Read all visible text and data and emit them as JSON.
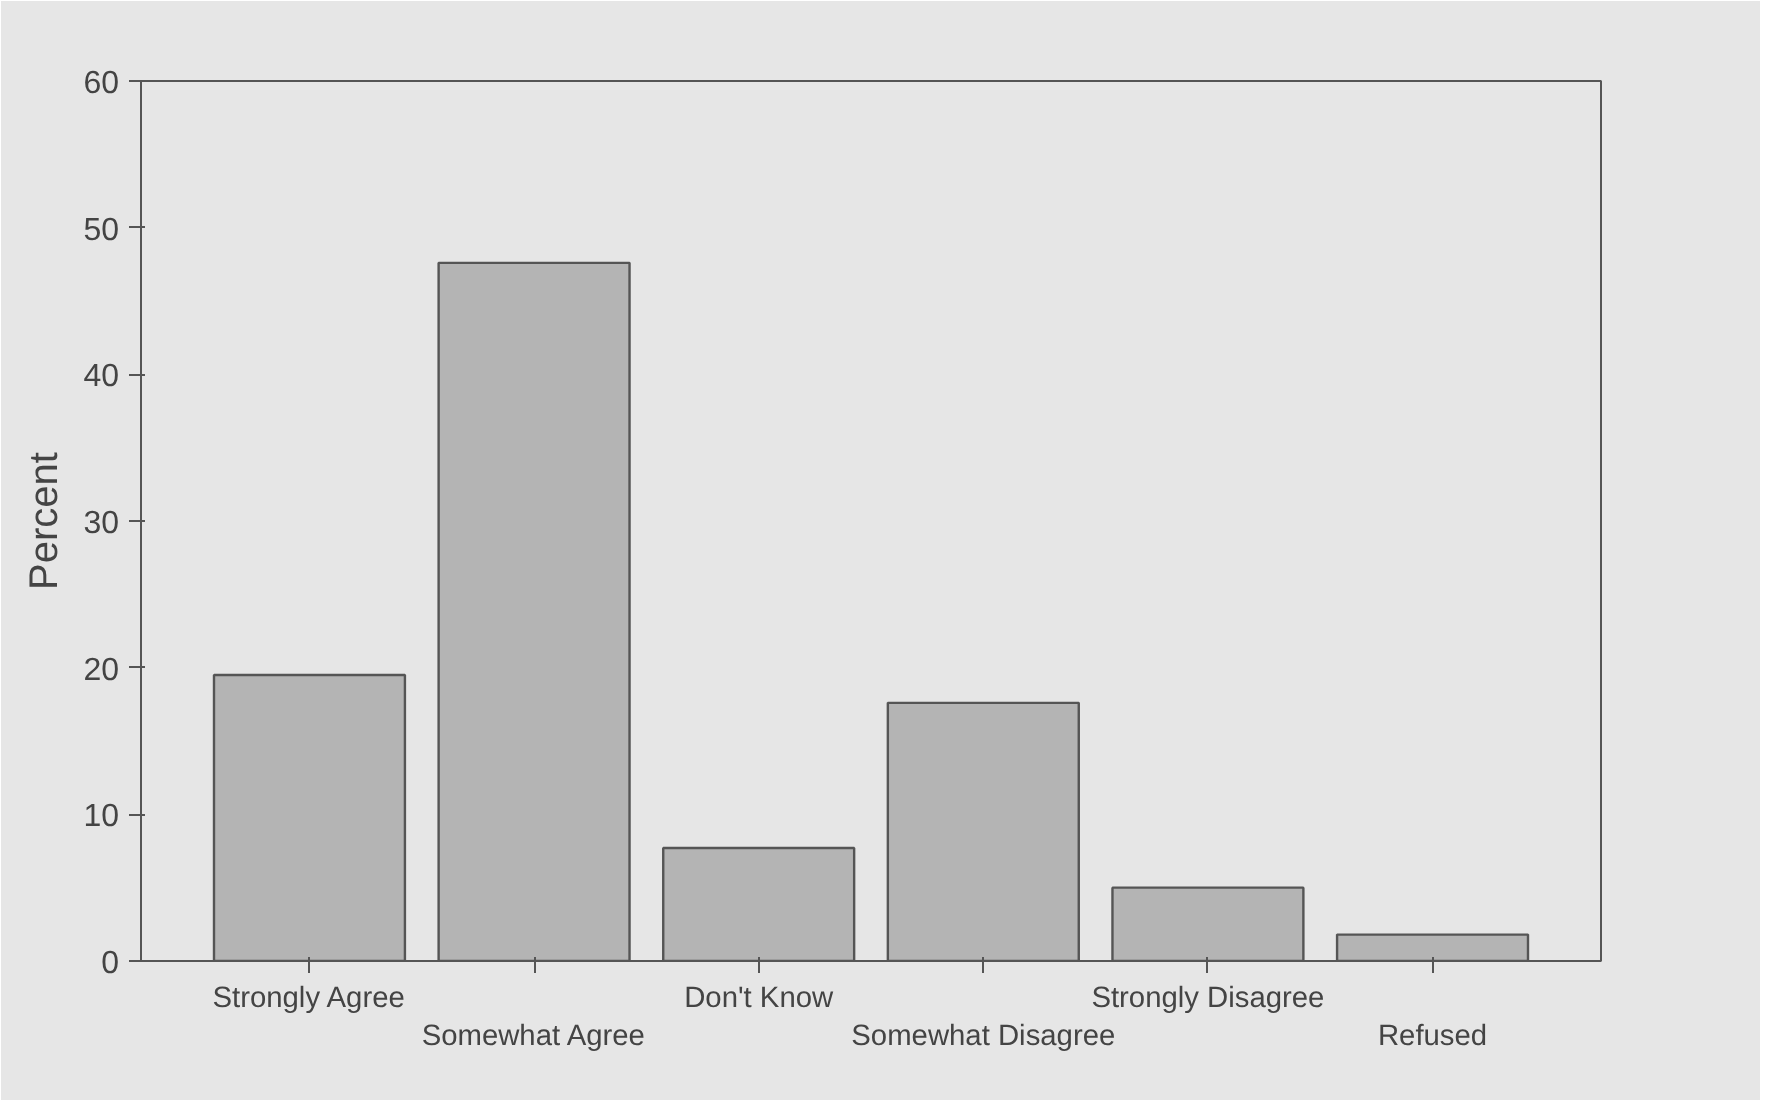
{
  "chart_data": {
    "type": "bar",
    "ylabel": "Percent",
    "categories": [
      "Strongly Agree",
      "Somewhat Agree",
      "Don't Know",
      "Somewhat Disagree",
      "Strongly Disagree",
      "Refused"
    ],
    "values": [
      19.5,
      47.6,
      7.7,
      17.6,
      5.0,
      1.8
    ],
    "color": "#b4b4b4",
    "ylim": [
      0,
      60
    ],
    "yticks": [
      0,
      10,
      20,
      30,
      40,
      50,
      60
    ],
    "grid": false
  }
}
